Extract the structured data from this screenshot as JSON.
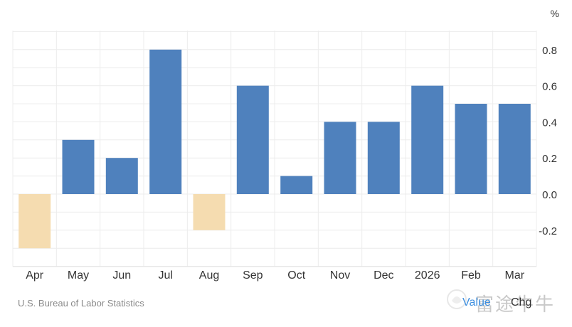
{
  "chart_data": {
    "type": "bar",
    "categories": [
      "Apr",
      "May",
      "Jun",
      "Jul",
      "Aug",
      "Sep",
      "Oct",
      "Nov",
      "Dec",
      "2026",
      "Feb",
      "Mar"
    ],
    "values": [
      -0.3,
      0.3,
      0.2,
      0.8,
      -0.2,
      0.6,
      0.1,
      0.4,
      0.4,
      0.6,
      0.5,
      0.5
    ],
    "title": "",
    "xlabel": "",
    "ylabel": "%",
    "ylim": [
      -0.4,
      0.9
    ],
    "yticks": [
      -0.2,
      0.0,
      0.2,
      0.4,
      0.6,
      0.8
    ],
    "ytick_labels": [
      "-0.2",
      "0.0",
      "0.2",
      "0.4",
      "0.6",
      "0.8"
    ],
    "grid": true,
    "colors": {
      "positive": "#4f81bd",
      "negative": "#f5dcb0",
      "grid": "#ececec",
      "axis_text": "#333333"
    }
  },
  "footer": {
    "source": "U.S. Bureau of Labor Statistics",
    "toggle_value": "Value",
    "toggle_chg": "Chg",
    "watermark": "富途牛牛"
  }
}
